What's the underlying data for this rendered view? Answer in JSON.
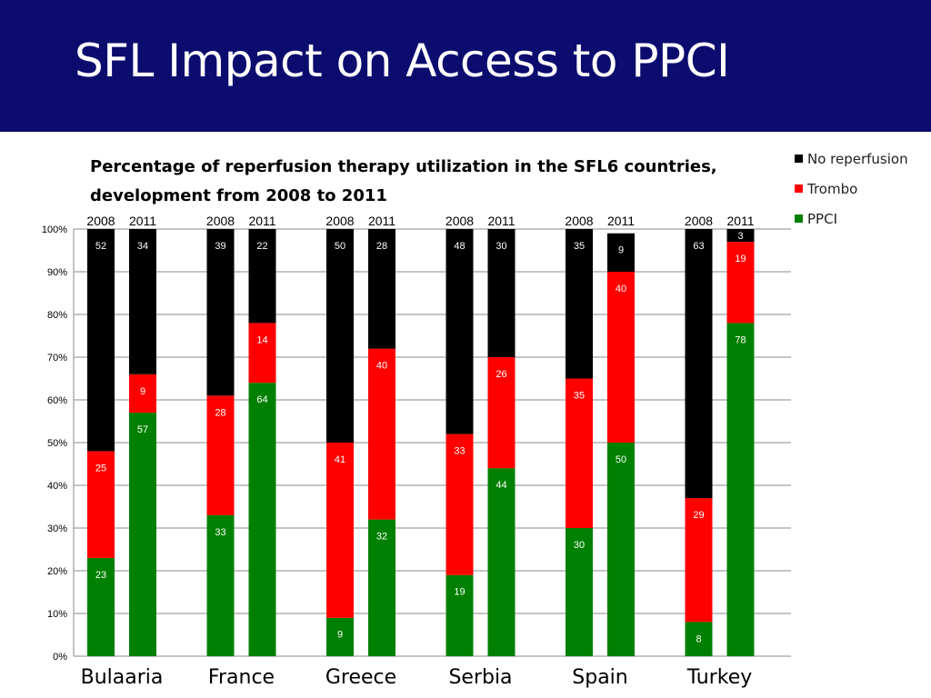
{
  "slide": {
    "title": "SFL Impact on Access to PPCI"
  },
  "chart_data": {
    "type": "bar",
    "stacked": true,
    "title": "Percentage of reperfusion therapy utilization in the SFL6 countries, development from 2008 to 2011",
    "xlabel": "",
    "ylabel": "",
    "ylim": [
      0,
      100
    ],
    "y_ticks": [
      "0%",
      "10%",
      "20%",
      "30%",
      "40%",
      "50%",
      "60%",
      "70%",
      "80%",
      "90%",
      "100%"
    ],
    "groups": [
      "Bulaaria",
      "France",
      "Greece",
      "Serbia",
      "Spain",
      "Turkey"
    ],
    "years": [
      "2008",
      "2011"
    ],
    "categories": [
      "2008",
      "2011",
      "2008",
      "2011",
      "2008",
      "2011",
      "2008",
      "2011",
      "2008",
      "2011",
      "2008",
      "2011"
    ],
    "series": [
      {
        "name": "PPCI",
        "color": "#008000",
        "values": [
          23,
          57,
          33,
          64,
          9,
          32,
          19,
          44,
          30,
          50,
          8,
          78
        ]
      },
      {
        "name": "Trombo",
        "color": "#ff0000",
        "values": [
          25,
          9,
          28,
          14,
          41,
          40,
          33,
          26,
          35,
          40,
          29,
          19
        ]
      },
      {
        "name": "No reperfusion",
        "color": "#000000",
        "values": [
          52,
          34,
          39,
          22,
          50,
          28,
          48,
          30,
          35,
          9,
          63,
          3
        ]
      }
    ],
    "legend": {
      "position": "top-right",
      "entries": [
        {
          "label": "No reperfusion",
          "color": "#000000"
        },
        {
          "label": "Trombo",
          "color": "#ff0000"
        },
        {
          "label": "PPCI",
          "color": "#008000"
        }
      ]
    },
    "grid": true
  }
}
